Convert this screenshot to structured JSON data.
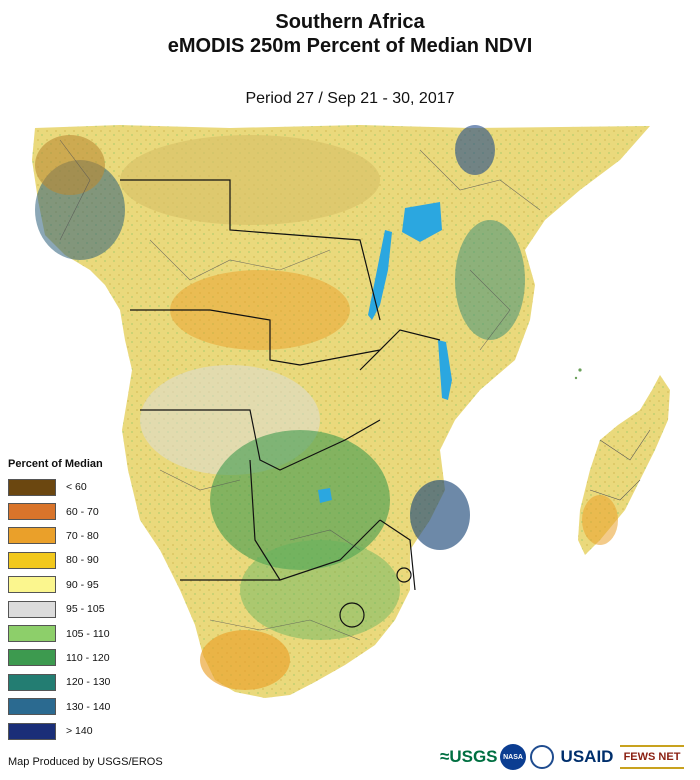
{
  "title": {
    "line1": "Southern Africa",
    "line2": "eMODIS 250m Percent of Median NDVI"
  },
  "subtitle": "Period 27 / Sep 21 - 30, 2017",
  "legend": {
    "title": "Percent of Median",
    "items": [
      {
        "label": "< 60",
        "color": "#6b4710"
      },
      {
        "label": "60 - 70",
        "color": "#d9742b"
      },
      {
        "label": "70 - 80",
        "color": "#eaa02a"
      },
      {
        "label": "80 - 90",
        "color": "#f2c81c"
      },
      {
        "label": "90 - 95",
        "color": "#fbf68e"
      },
      {
        "label": "95 - 105",
        "color": "#dcdcdc"
      },
      {
        "label": "105 - 110",
        "color": "#8dcf6a"
      },
      {
        "label": "110 - 120",
        "color": "#3d9a4f"
      },
      {
        "label": "120 - 130",
        "color": "#237d72"
      },
      {
        "label": "130 - 140",
        "color": "#2b6a90"
      },
      {
        "label": "> 140",
        "color": "#1a2e78"
      }
    ]
  },
  "credit": "Map Produced by USGS/EROS",
  "logos": {
    "usgs": "≈USGS",
    "nasa": "NASA",
    "usaid": "USAID",
    "fews": "FEWS NET"
  },
  "map": {
    "regions": [
      "Africa mainland",
      "Madagascar",
      "Lake Tanganyika",
      "Lake Malawi",
      "Lake Victoria",
      "Okavango Delta"
    ]
  }
}
